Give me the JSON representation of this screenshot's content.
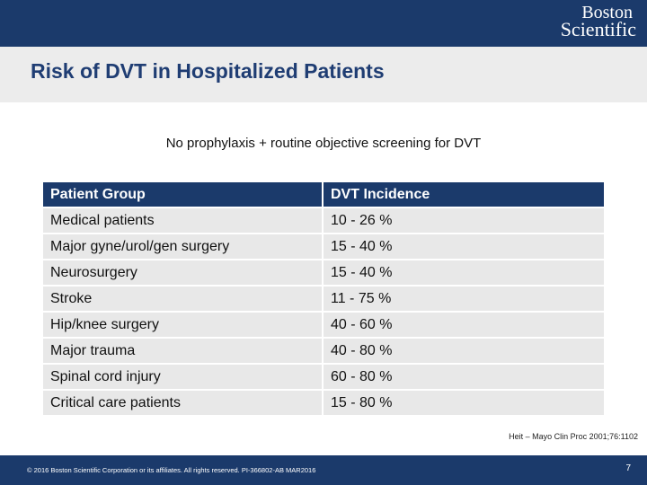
{
  "header": {
    "logo_line1": "Boston",
    "logo_line2": "Scientific"
  },
  "slide": {
    "title": "Risk of DVT in Hospitalized Patients",
    "subtitle": "No prophylaxis + routine objective screening for DVT"
  },
  "table": {
    "columns": [
      "Patient Group",
      "DVT Incidence"
    ],
    "rows": [
      [
        "Medical patients",
        "10 - 26 %"
      ],
      [
        "Major gyne/urol/gen surgery",
        "15 - 40 %"
      ],
      [
        "Neurosurgery",
        "15 - 40 %"
      ],
      [
        "Stroke",
        "11 - 75 %"
      ],
      [
        "Hip/knee surgery",
        "40 - 60 %"
      ],
      [
        "Major trauma",
        "40 - 80 %"
      ],
      [
        "Spinal cord injury",
        "60 - 80 %"
      ],
      [
        "Critical care patients",
        "15 - 80 %"
      ]
    ]
  },
  "citation": "Heit – Mayo Clin Proc 2001;76:1102",
  "footer": {
    "copyright": "© 2016 Boston Scientific Corporation or its affiliates. All rights reserved. PI-366802-AB MAR2016",
    "page_number": "7"
  },
  "colors": {
    "brand_navy": "#1b3a6b",
    "title_blue": "#1f3d73",
    "row_gray": "#e8e8e8"
  }
}
